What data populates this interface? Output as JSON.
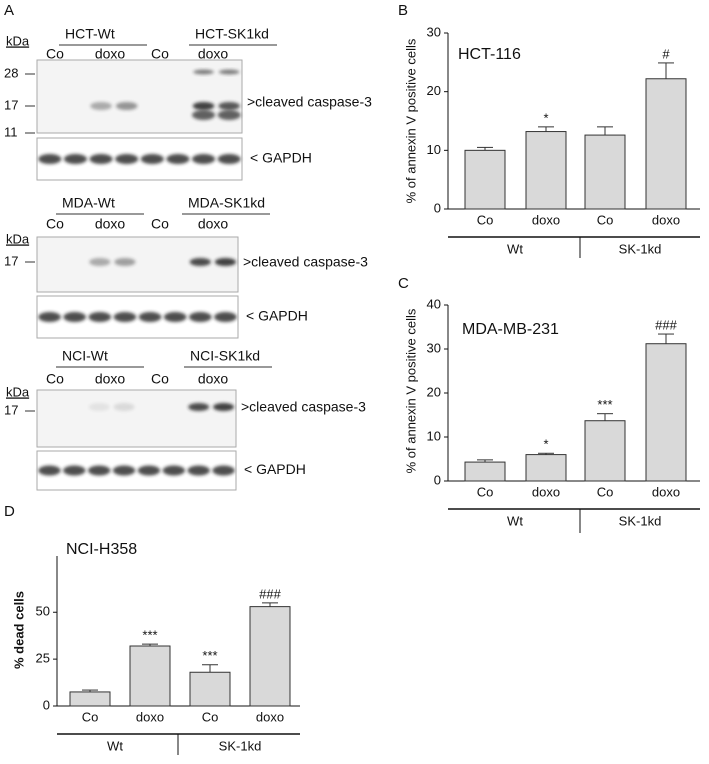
{
  "blots": {
    "panel": "A",
    "kda": "kDa",
    "items": [
      {
        "groups": [
          "HCT-Wt",
          "HCT-SK1kd"
        ],
        "lanes": [
          "Co",
          "doxo",
          "Co",
          "doxo"
        ],
        "markers": [
          28,
          17,
          11
        ],
        "target": ">cleaved caspase-3",
        "control": "< GAPDH"
      },
      {
        "groups": [
          "MDA-Wt",
          "MDA-SK1kd"
        ],
        "lanes": [
          "Co",
          "doxo",
          "Co",
          "doxo"
        ],
        "markers": [
          17
        ],
        "target": ">cleaved caspase-3",
        "control": "< GAPDH"
      },
      {
        "groups": [
          "NCI-Wt",
          "NCI-SK1kd"
        ],
        "lanes": [
          "Co",
          "doxo",
          "Co",
          "doxo"
        ],
        "markers": [
          17
        ],
        "target": ">cleaved caspase-3",
        "control": "< GAPDH"
      }
    ]
  },
  "chart_data": [
    {
      "type": "bar",
      "panel": "B",
      "title": "HCT-116",
      "y_label": "% of annexin V positive cells",
      "categories": [
        "Co",
        "doxo",
        "Co",
        "doxo"
      ],
      "groups": [
        "Wt",
        "SK-1kd"
      ],
      "values": [
        10,
        13.2,
        12.6,
        22.2
      ],
      "errors": [
        0.5,
        0.8,
        1.4,
        2.7
      ],
      "annotations": [
        null,
        "*",
        null,
        "#"
      ],
      "color": "#d9d9d9",
      "ylim": [
        0,
        30
      ],
      "yticks": [
        0,
        10,
        20,
        30
      ]
    },
    {
      "type": "bar",
      "panel": "C",
      "title": "MDA-MB-231",
      "y_label": "% of annexin V positive cells",
      "categories": [
        "Co",
        "doxo",
        "Co",
        "doxo"
      ],
      "groups": [
        "Wt",
        "SK-1kd"
      ],
      "values": [
        4.3,
        6.0,
        13.7,
        31.2
      ],
      "errors": [
        0.5,
        0.3,
        1.6,
        2.2
      ],
      "annotations": [
        null,
        "*",
        "***",
        "###"
      ],
      "color": "#d9d9d9",
      "ylim": [
        0,
        40
      ],
      "yticks": [
        0,
        10,
        20,
        30,
        40
      ]
    },
    {
      "type": "bar",
      "panel": "D",
      "title": "NCI-H358",
      "y_label": "% dead cells",
      "categories": [
        "Co",
        "doxo",
        "Co",
        "doxo"
      ],
      "groups": [
        "Wt",
        "SK-1kd"
      ],
      "values": [
        7.5,
        32,
        18,
        53
      ],
      "errors": [
        1,
        1,
        4,
        2
      ],
      "annotations": [
        null,
        "***",
        "***",
        "###"
      ],
      "color": "#d9d9d9",
      "ylim": [
        0,
        80
      ],
      "yticks": [
        0,
        25,
        50
      ]
    }
  ]
}
